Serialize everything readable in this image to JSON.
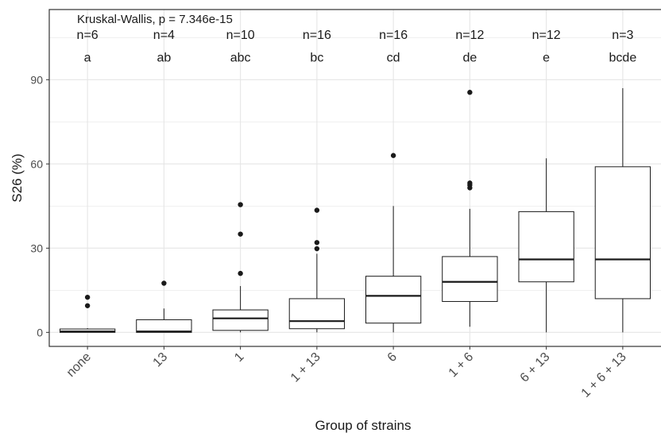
{
  "chart_data": {
    "type": "boxplot",
    "xlabel": "Group of strains",
    "ylabel": "S26 (%)",
    "ylim": [
      -5,
      115
    ],
    "yticks": [
      0,
      30,
      60,
      90
    ],
    "grid": true,
    "test_annotation": "Kruskal-Wallis, p = 7.346e-15",
    "categories": [
      "none",
      "13",
      "1",
      "1 + 13",
      "6",
      "1 + 6",
      "6 + 13",
      "1 + 6 + 13"
    ],
    "n_labels": [
      "n=6",
      "n=4",
      "n=10",
      "n=16",
      "n=16",
      "n=12",
      "n=12",
      "n=3"
    ],
    "letters": [
      "a",
      "ab",
      "abc",
      "bc",
      "cd",
      "de",
      "e",
      "bcde"
    ],
    "boxes": [
      {
        "whisker_low": 0,
        "q1": 0,
        "median": 0.3,
        "q3": 1.2,
        "whisker_high": 1.5,
        "outliers": [
          9.5,
          12.5
        ]
      },
      {
        "whisker_low": 0,
        "q1": 0,
        "median": 0.3,
        "q3": 4.5,
        "whisker_high": 8.5,
        "outliers": [
          17.5
        ]
      },
      {
        "whisker_low": 0,
        "q1": 0.7,
        "median": 5,
        "q3": 8,
        "whisker_high": 16.5,
        "outliers": [
          21,
          35,
          45.5
        ]
      },
      {
        "whisker_low": 0,
        "q1": 1.3,
        "median": 4,
        "q3": 12,
        "whisker_high": 28,
        "outliers": [
          29.8,
          32,
          43.5
        ]
      },
      {
        "whisker_low": 0,
        "q1": 3.3,
        "median": 13,
        "q3": 20,
        "whisker_high": 45,
        "outliers": [
          63
        ]
      },
      {
        "whisker_low": 2,
        "q1": 11,
        "median": 18,
        "q3": 27,
        "whisker_high": 44,
        "outliers": [
          51.5,
          52.5,
          53.2,
          85.5
        ]
      },
      {
        "whisker_low": 0,
        "q1": 18,
        "median": 26,
        "q3": 43,
        "whisker_high": 62,
        "outliers": []
      },
      {
        "whisker_low": 0,
        "q1": 12,
        "median": 26,
        "q3": 59,
        "whisker_high": 87,
        "outliers": []
      }
    ]
  },
  "colors": {
    "panel_border": "#333333",
    "grid": "#e6e6e6",
    "box_line": "#1a1a1a",
    "point": "#1a1a1a"
  }
}
